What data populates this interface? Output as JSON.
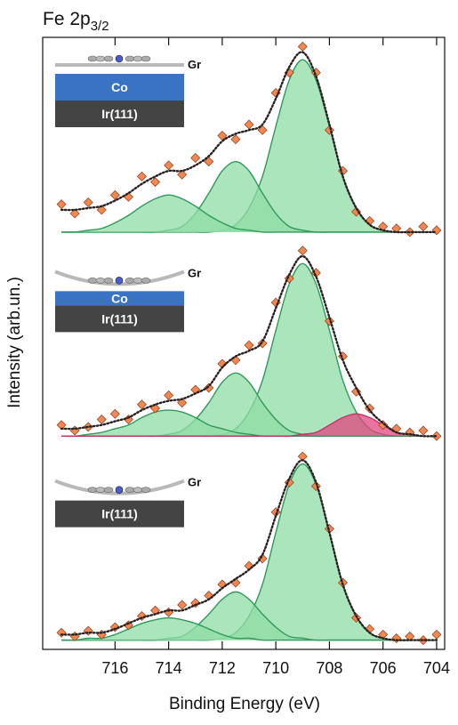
{
  "chart_data": {
    "type": "spectra",
    "title": "Fe 2p",
    "title_subscript": "3/2",
    "xlabel": "Binding Energy (eV)",
    "ylabel": "Intensity (arb.un.)",
    "xlim": [
      718.7,
      703.7
    ],
    "xticks": [
      716,
      714,
      712,
      710,
      708,
      706,
      704
    ],
    "x": [
      718,
      717.5,
      717,
      716.5,
      716,
      715.5,
      715,
      714.5,
      714,
      713.5,
      713,
      712.5,
      712,
      711.5,
      711,
      710.5,
      710,
      709.5,
      709,
      708.5,
      708,
      707.5,
      707,
      706.5,
      706,
      705.5,
      705,
      704.5,
      704
    ],
    "data_color": "#f2874f",
    "fit_color": "#2a2020",
    "panels": [
      {
        "ylim": [
          -0.05,
          1.05
        ],
        "overlayer": "Gr",
        "layers": [
          "Co",
          "Ir(111)"
        ],
        "components": [
          {
            "color": "#2f9a5a",
            "values": [
              0,
              0,
              0,
              0,
              0,
              0,
              0,
              0,
              0,
              0,
              0,
              0,
              0.01,
              0.04,
              0.13,
              0.3,
              0.57,
              0.82,
              0.93,
              0.82,
              0.57,
              0.3,
              0.13,
              0.04,
              0.01,
              0,
              0,
              0,
              0
            ]
          },
          {
            "color": "#2f9a5a",
            "values": [
              0,
              0,
              0,
              0,
              0,
              0,
              0,
              0,
              0.01,
              0.03,
              0.1,
              0.21,
              0.33,
              0.38,
              0.33,
              0.21,
              0.1,
              0.03,
              0.01,
              0,
              0,
              0,
              0,
              0,
              0,
              0,
              0,
              0,
              0
            ]
          },
          {
            "color": "#2f9a5a",
            "values": [
              0,
              0,
              0.01,
              0.02,
              0.05,
              0.09,
              0.14,
              0.18,
              0.2,
              0.18,
              0.14,
              0.09,
              0.05,
              0.02,
              0.01,
              0,
              0,
              0,
              0,
              0,
              0,
              0,
              0,
              0,
              0,
              0,
              0,
              0,
              0
            ]
          }
        ],
        "fit": [
          0.12,
          0.12,
          0.13,
          0.14,
          0.17,
          0.21,
          0.26,
          0.3,
          0.33,
          0.33,
          0.36,
          0.41,
          0.49,
          0.53,
          0.55,
          0.58,
          0.72,
          0.89,
          0.97,
          0.84,
          0.58,
          0.3,
          0.13,
          0.04,
          0.01,
          0,
          0,
          0,
          0
        ],
        "data": [
          0.15,
          0.1,
          0.16,
          0.12,
          0.2,
          0.19,
          0.3,
          0.27,
          0.36,
          0.31,
          0.4,
          0.38,
          0.52,
          0.5,
          0.58,
          0.55,
          0.75,
          0.86,
          1.0,
          0.86,
          0.55,
          0.33,
          0.11,
          0.06,
          0.03,
          0.02,
          0.0,
          0.03,
          0.01
        ]
      },
      {
        "ylim": [
          -0.05,
          1.05
        ],
        "overlayer": "Gr",
        "layers": [
          "Co",
          "Ir(111)"
        ],
        "components": [
          {
            "color": "#2f9a5a",
            "values": [
              0,
              0,
              0,
              0,
              0,
              0,
              0,
              0,
              0,
              0,
              0,
              0,
              0.01,
              0.04,
              0.13,
              0.3,
              0.57,
              0.82,
              0.93,
              0.82,
              0.57,
              0.3,
              0.13,
              0.04,
              0.01,
              0,
              0,
              0,
              0
            ]
          },
          {
            "color": "#2f9a5a",
            "values": [
              0,
              0,
              0,
              0,
              0,
              0,
              0,
              0,
              0.01,
              0.03,
              0.09,
              0.18,
              0.29,
              0.34,
              0.29,
              0.18,
              0.09,
              0.03,
              0.01,
              0,
              0,
              0,
              0,
              0,
              0,
              0,
              0,
              0,
              0
            ]
          },
          {
            "color": "#2f9a5a",
            "values": [
              0,
              0,
              0.01,
              0.02,
              0.04,
              0.06,
              0.1,
              0.13,
              0.14,
              0.13,
              0.1,
              0.06,
              0.04,
              0.02,
              0.01,
              0,
              0,
              0,
              0,
              0,
              0,
              0,
              0,
              0,
              0,
              0,
              0,
              0,
              0
            ]
          },
          {
            "color": "#c8306a",
            "values": [
              0,
              0,
              0,
              0,
              0,
              0,
              0,
              0,
              0,
              0,
              0,
              0,
              0,
              0,
              0,
              0,
              0,
              0,
              0.01,
              0.02,
              0.06,
              0.1,
              0.12,
              0.1,
              0.06,
              0.02,
              0.01,
              0,
              0
            ]
          }
        ],
        "fit": [
          0.04,
          0.04,
          0.05,
          0.06,
          0.08,
          0.1,
          0.14,
          0.17,
          0.19,
          0.2,
          0.23,
          0.27,
          0.37,
          0.43,
          0.46,
          0.51,
          0.69,
          0.87,
          0.97,
          0.86,
          0.64,
          0.41,
          0.26,
          0.14,
          0.07,
          0.02,
          0.01,
          0,
          0
        ],
        "data": [
          0.06,
          0.03,
          0.05,
          0.09,
          0.12,
          0.09,
          0.17,
          0.15,
          0.22,
          0.18,
          0.25,
          0.26,
          0.39,
          0.41,
          0.49,
          0.5,
          0.72,
          0.85,
          1.0,
          0.88,
          0.62,
          0.43,
          0.24,
          0.15,
          0.06,
          0.04,
          0.02,
          0.03,
          0.0
        ]
      },
      {
        "ylim": [
          -0.05,
          1.05
        ],
        "overlayer": "Gr",
        "layers": [
          "Ir(111)"
        ],
        "components": [
          {
            "color": "#2f9a5a",
            "values": [
              0,
              0,
              0,
              0,
              0,
              0,
              0,
              0,
              0,
              0,
              0,
              0,
              0.01,
              0.04,
              0.13,
              0.3,
              0.58,
              0.84,
              0.95,
              0.84,
              0.58,
              0.3,
              0.13,
              0.04,
              0.01,
              0,
              0,
              0,
              0
            ]
          },
          {
            "color": "#2f9a5a",
            "values": [
              0,
              0,
              0,
              0,
              0,
              0,
              0,
              0,
              0.01,
              0.02,
              0.07,
              0.14,
              0.22,
              0.26,
              0.22,
              0.14,
              0.07,
              0.02,
              0.01,
              0,
              0,
              0,
              0,
              0,
              0,
              0,
              0,
              0,
              0
            ]
          },
          {
            "color": "#2f9a5a",
            "values": [
              0,
              0,
              0.01,
              0.01,
              0.03,
              0.06,
              0.09,
              0.11,
              0.12,
              0.11,
              0.09,
              0.06,
              0.03,
              0.01,
              0.01,
              0,
              0,
              0,
              0,
              0,
              0,
              0,
              0,
              0,
              0,
              0,
              0,
              0,
              0
            ]
          }
        ],
        "fit": [
          0.03,
          0.03,
          0.04,
          0.04,
          0.06,
          0.09,
          0.12,
          0.14,
          0.16,
          0.16,
          0.19,
          0.22,
          0.28,
          0.33,
          0.38,
          0.46,
          0.67,
          0.87,
          0.97,
          0.85,
          0.58,
          0.3,
          0.13,
          0.04,
          0.01,
          0,
          0,
          0,
          0
        ],
        "data": [
          0.04,
          0.02,
          0.05,
          0.03,
          0.07,
          0.08,
          0.13,
          0.16,
          0.15,
          0.19,
          0.2,
          0.24,
          0.3,
          0.31,
          0.4,
          0.44,
          0.69,
          0.85,
          0.99,
          0.83,
          0.6,
          0.31,
          0.12,
          0.06,
          0.03,
          0.01,
          0.02,
          0.0,
          0.03
        ]
      }
    ]
  }
}
